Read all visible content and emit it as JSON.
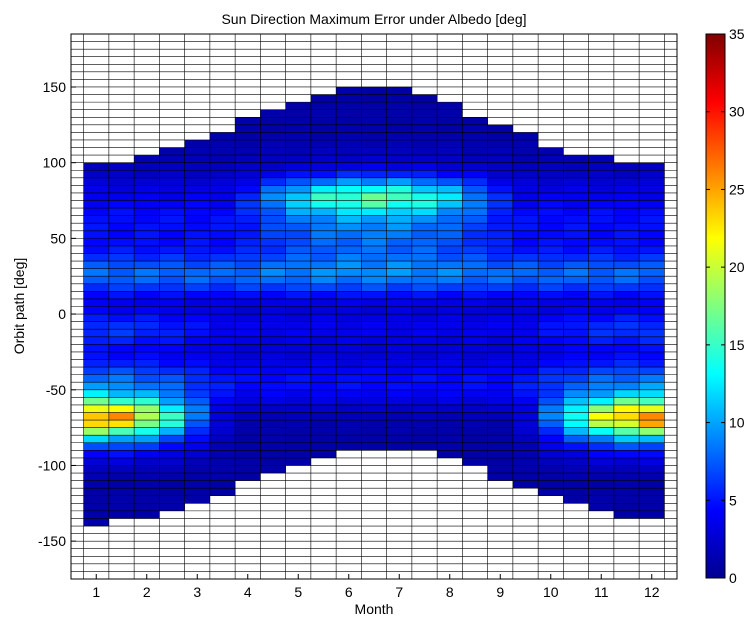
{
  "chart_data": {
    "type": "heatmap",
    "title": "Sun Direction Maximum Error under Albedo [deg]",
    "xlabel": "Month",
    "ylabel": "Orbit path [deg]",
    "xticks": [
      "1",
      "2",
      "3",
      "4",
      "5",
      "6",
      "7",
      "8",
      "9",
      "10",
      "11",
      "12"
    ],
    "yticks": [
      "-150",
      "-100",
      "-50",
      "0",
      "50",
      "100",
      "150"
    ],
    "xlim": [
      0.5,
      12.5
    ],
    "ylim": [
      -175,
      185
    ],
    "cell_height_deg": 5,
    "grid": true,
    "colorbar": {
      "range": [
        0,
        35
      ],
      "ticks": [
        "0",
        "5",
        "10",
        "15",
        "20",
        "25",
        "30",
        "35"
      ],
      "colormap": "jet",
      "placement": "right"
    },
    "coverage": [
      {
        "month": 1,
        "y_range": [
          -140,
          100
        ]
      },
      {
        "month": 1.5,
        "y_range": [
          -135,
          100
        ]
      },
      {
        "month": 2,
        "y_range": [
          -135,
          105
        ]
      },
      {
        "month": 2.5,
        "y_range": [
          -130,
          110
        ]
      },
      {
        "month": 3,
        "y_range": [
          -125,
          115
        ]
      },
      {
        "month": 3.5,
        "y_range": [
          -120,
          120
        ]
      },
      {
        "month": 4,
        "y_range": [
          -110,
          130
        ]
      },
      {
        "month": 4.5,
        "y_range": [
          -105,
          135
        ]
      },
      {
        "month": 5,
        "y_range": [
          -100,
          140
        ]
      },
      {
        "month": 5.5,
        "y_range": [
          -95,
          145
        ]
      },
      {
        "month": 6,
        "y_range": [
          -90,
          150
        ]
      },
      {
        "month": 6.5,
        "y_range": [
          -90,
          150
        ]
      },
      {
        "month": 7,
        "y_range": [
          -90,
          150
        ]
      },
      {
        "month": 7.5,
        "y_range": [
          -90,
          145
        ]
      },
      {
        "month": 8,
        "y_range": [
          -95,
          140
        ]
      },
      {
        "month": 8.5,
        "y_range": [
          -100,
          130
        ]
      },
      {
        "month": 9,
        "y_range": [
          -110,
          125
        ]
      },
      {
        "month": 9.5,
        "y_range": [
          -115,
          120
        ]
      },
      {
        "month": 10,
        "y_range": [
          -120,
          110
        ]
      },
      {
        "month": 10.5,
        "y_range": [
          -125,
          105
        ]
      },
      {
        "month": 11,
        "y_range": [
          -130,
          105
        ]
      },
      {
        "month": 11.5,
        "y_range": [
          -135,
          100
        ]
      },
      {
        "month": 12,
        "y_range": [
          -135,
          100
        ]
      }
    ]
  }
}
